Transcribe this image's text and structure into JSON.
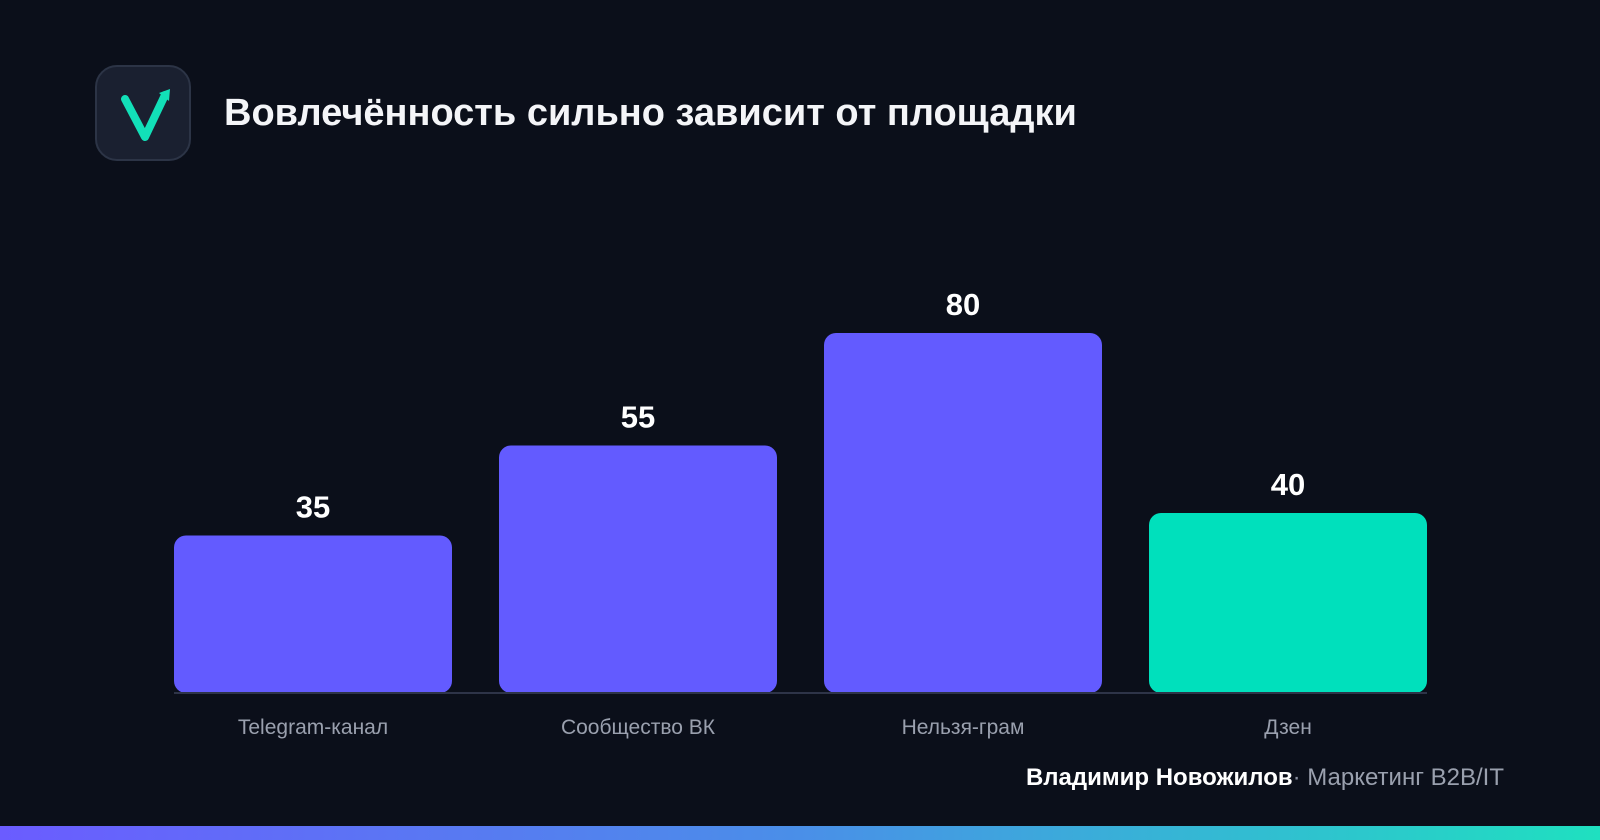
{
  "header": {
    "title": "Вовлечённость сильно зависит от площадки",
    "logo_icon": "checkmark-arrow-icon"
  },
  "chart_data": {
    "type": "bar",
    "title": "Вовлечённость сильно зависит от площадки",
    "categories": [
      "Telegram-канал",
      "Сообщество ВК",
      "Нельзя-грам",
      "Дзен"
    ],
    "values": [
      35,
      55,
      80,
      40
    ],
    "colors": [
      "#635bff",
      "#635bff",
      "#635bff",
      "#00e0bc"
    ],
    "ylim": [
      0,
      80
    ],
    "grid": false,
    "data_labels": true
  },
  "footer": {
    "author": "Владимир Новожилов",
    "separator": "·",
    "subtitle": "Маркетинг B2B/IT"
  },
  "colors": {
    "background": "#0b0f1a",
    "primary_bar": "#635bff",
    "accent_bar": "#00e0bc"
  }
}
